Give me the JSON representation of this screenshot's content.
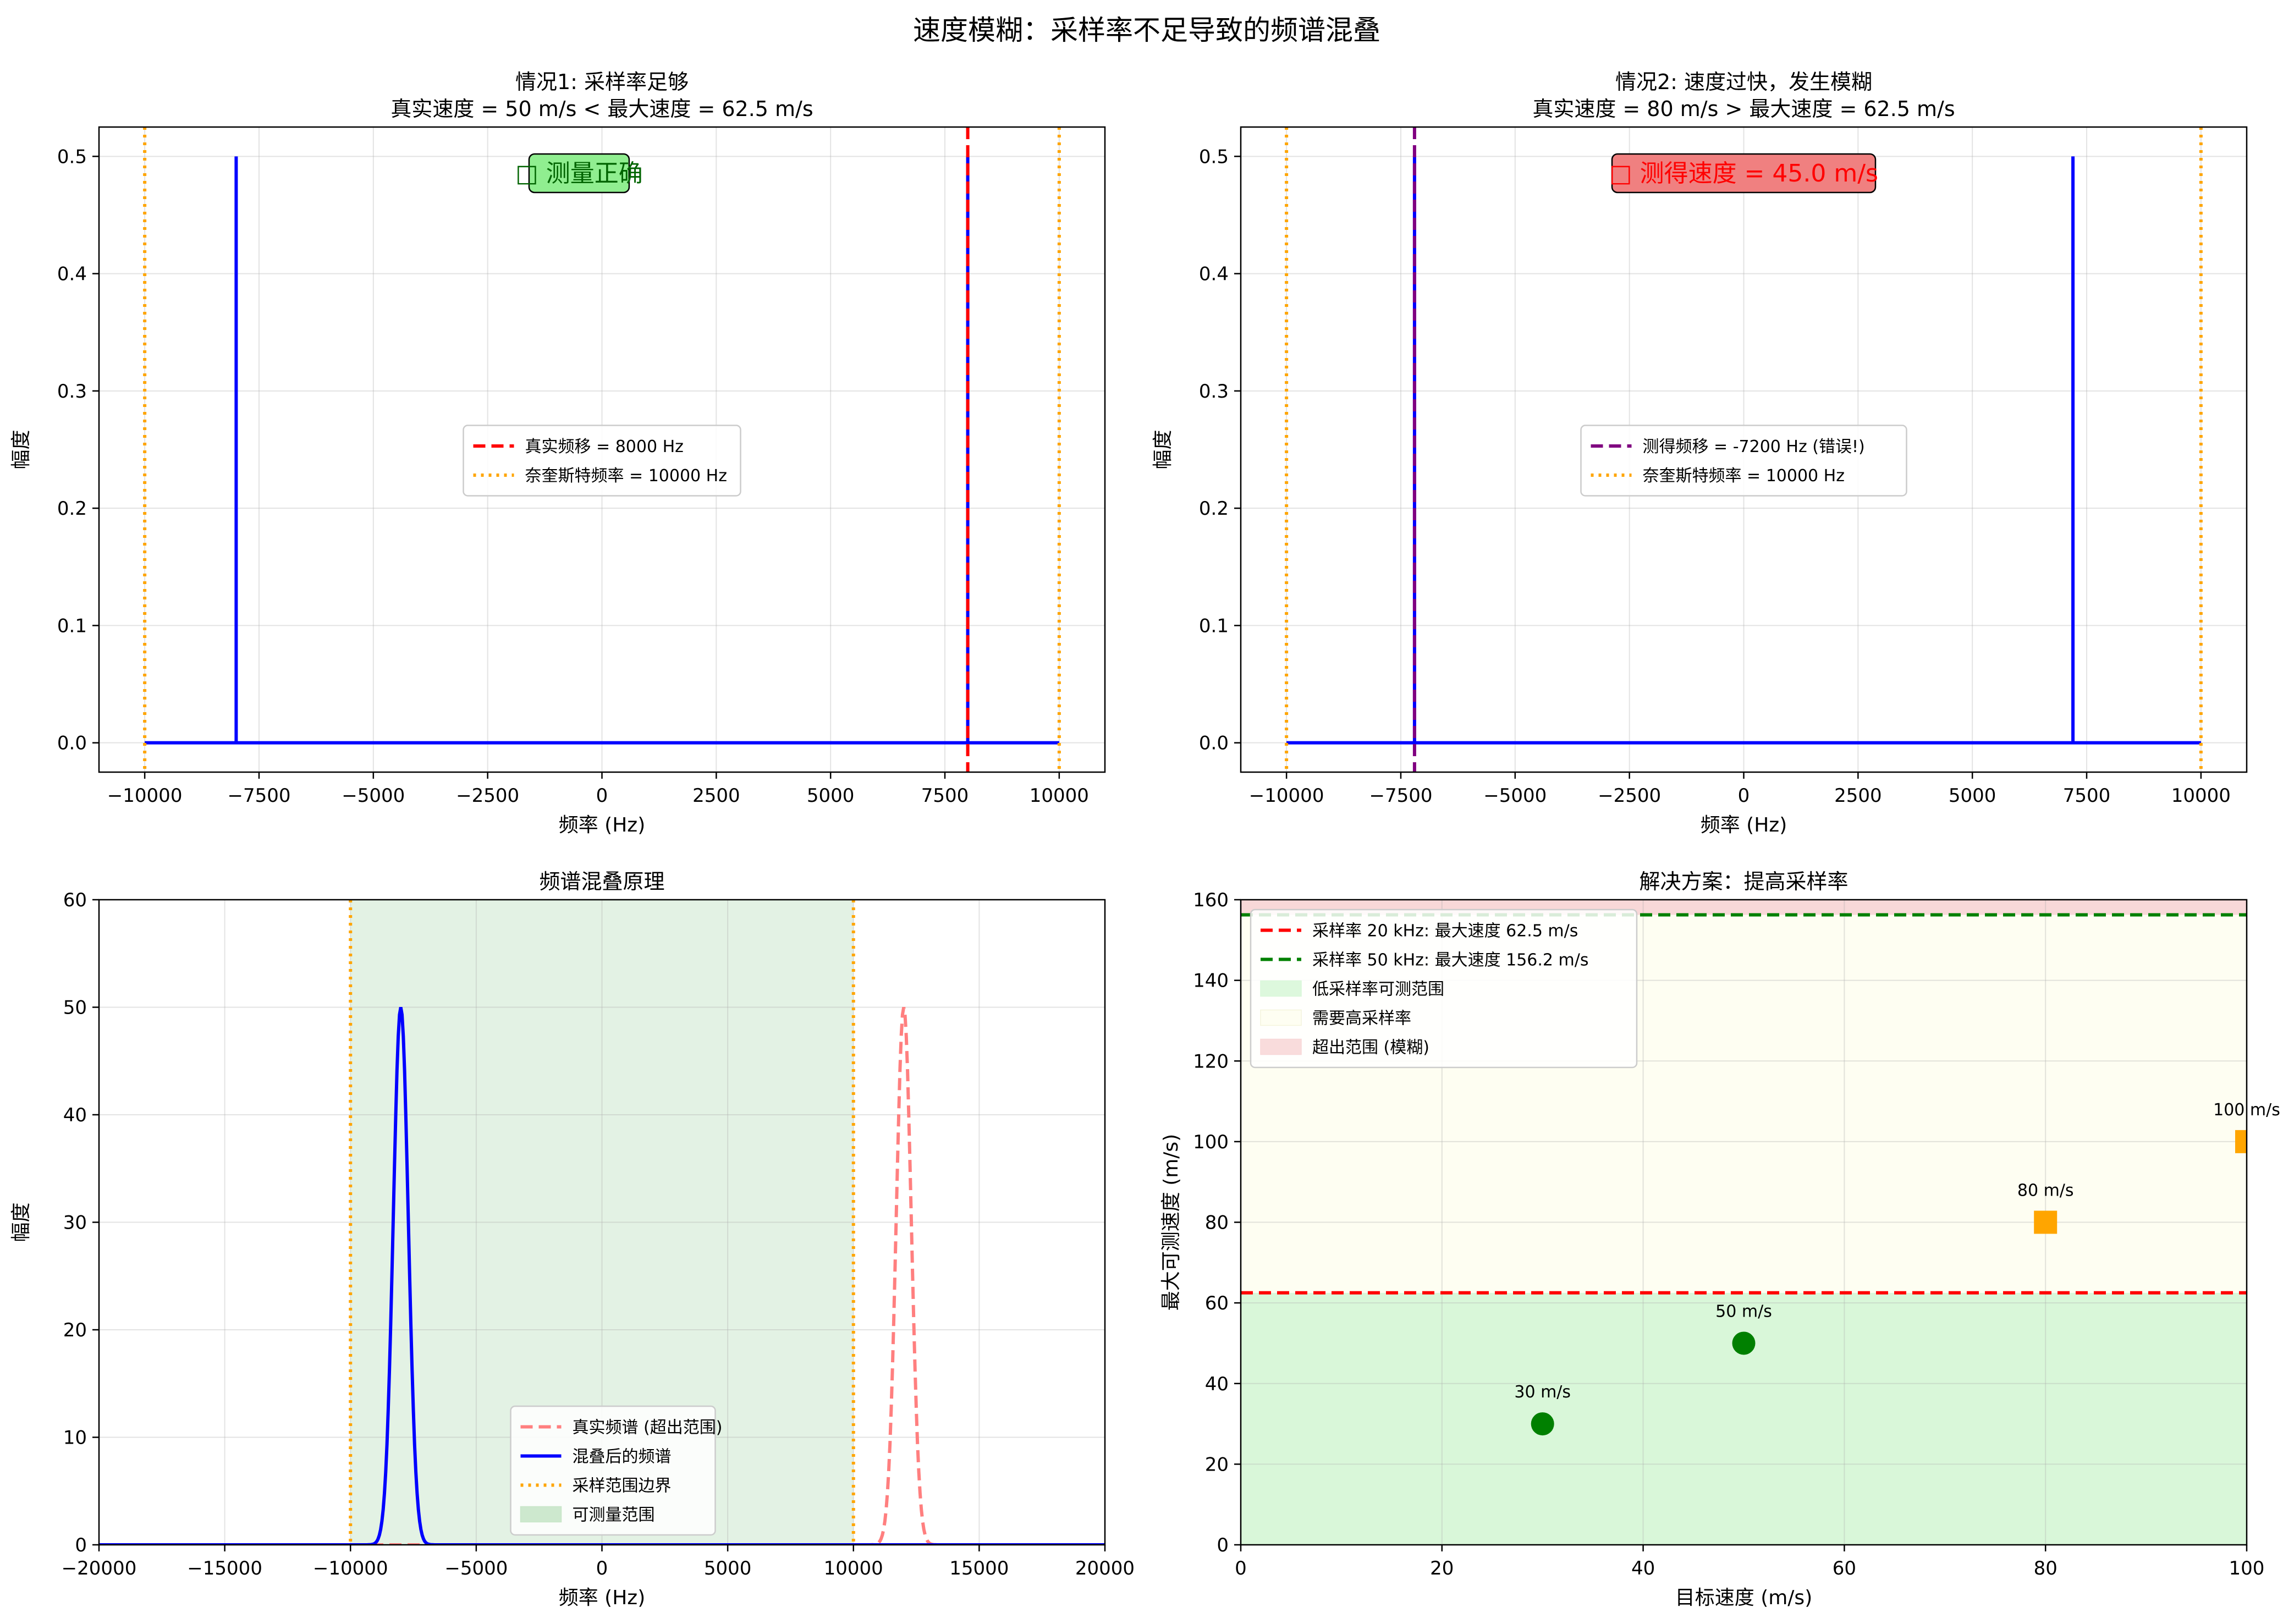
{
  "figure": {
    "suptitle": "速度模糊：采样率不足导致的频谱混叠"
  },
  "chart_data": [
    {
      "type": "line",
      "title_line1": "情况1: 采样率足够",
      "title_line2": "真实速度 = 50 m/s < 最大速度 = 62.5 m/s",
      "xlabel": "频率 (Hz)",
      "ylabel": "幅度",
      "xlim": [
        -11000,
        11000
      ],
      "ylim": [
        -0.025,
        0.525
      ],
      "xticks": [
        -10000,
        -7500,
        -5000,
        -2500,
        0,
        2500,
        5000,
        7500,
        10000
      ],
      "yticks": [
        0.0,
        0.1,
        0.2,
        0.3,
        0.4,
        0.5
      ],
      "grid": true,
      "spectrum": {
        "color": "#0000ff",
        "x_start": -10000,
        "x_end": 10000,
        "peaks": [
          {
            "x": -8000,
            "y": 0.5
          },
          {
            "x": 8000,
            "y": 0.5
          }
        ]
      },
      "vlines": [
        {
          "x": 8000,
          "style": "dashed",
          "color": "#ff0000"
        },
        {
          "x": -10000,
          "style": "dotted",
          "color": "#ffa500"
        },
        {
          "x": 10000,
          "style": "dotted",
          "color": "#ffa500"
        }
      ],
      "legend": {
        "placement": "center",
        "entries": [
          {
            "label": "真实频移 = 8000 Hz",
            "style": "dashed",
            "color": "#ff0000"
          },
          {
            "label": "奈奎斯特频率 = 10000 Hz",
            "style": "dotted",
            "color": "#ffa500"
          }
        ]
      },
      "annotation": {
        "text": "□ 测量正确",
        "bg": "#90ee90",
        "color": "#006400"
      }
    },
    {
      "type": "line",
      "title_line1": "情况2: 速度过快，发生模糊",
      "title_line2": "真实速度 = 80 m/s > 最大速度 = 62.5 m/s",
      "xlabel": "频率 (Hz)",
      "ylabel": "幅度",
      "xlim": [
        -11000,
        11000
      ],
      "ylim": [
        -0.025,
        0.525
      ],
      "xticks": [
        -10000,
        -7500,
        -5000,
        -2500,
        0,
        2500,
        5000,
        7500,
        10000
      ],
      "yticks": [
        0.0,
        0.1,
        0.2,
        0.3,
        0.4,
        0.5
      ],
      "grid": true,
      "spectrum": {
        "color": "#0000ff",
        "x_start": -10000,
        "x_end": 10000,
        "peaks": [
          {
            "x": -7200,
            "y": 0.5
          },
          {
            "x": 7200,
            "y": 0.5
          }
        ]
      },
      "vlines": [
        {
          "x": -7200,
          "style": "dashed",
          "color": "#800080"
        },
        {
          "x": -10000,
          "style": "dotted",
          "color": "#ffa500"
        },
        {
          "x": 10000,
          "style": "dotted",
          "color": "#ffa500"
        }
      ],
      "legend": {
        "placement": "center",
        "entries": [
          {
            "label": "测得频移 = -7200 Hz (错误!)",
            "style": "dashed",
            "color": "#800080"
          },
          {
            "label": "奈奎斯特频率 = 10000 Hz",
            "style": "dotted",
            "color": "#ffa500"
          }
        ]
      },
      "annotation": {
        "text": "□ 测得速度 = 45.0 m/s",
        "bg": "#f08080",
        "color": "#ff0000"
      }
    },
    {
      "type": "line",
      "title_line1": "频谱混叠原理",
      "xlabel": "频率 (Hz)",
      "ylabel": "幅度",
      "xlim": [
        -20000,
        20000
      ],
      "ylim": [
        0,
        60
      ],
      "xticks": [
        -20000,
        -15000,
        -10000,
        -5000,
        0,
        5000,
        10000,
        15000,
        20000
      ],
      "yticks": [
        0,
        10,
        20,
        30,
        40,
        50,
        60
      ],
      "grid": true,
      "shaded_band": {
        "x": [
          -10000,
          10000
        ],
        "color": "#c8e6c9"
      },
      "curves": [
        {
          "label": "真实频谱 (超出范围)",
          "center": 12000,
          "sigma": 300,
          "amplitude": 50,
          "style": "dashed",
          "color": "#ff7f7f"
        },
        {
          "label": "混叠后的频谱",
          "center": -8000,
          "sigma": 300,
          "amplitude": 50,
          "style": "solid",
          "color": "#0000ff"
        }
      ],
      "vlines": [
        {
          "x": -10000,
          "style": "dotted",
          "color": "#ffa500"
        },
        {
          "x": 10000,
          "style": "dotted",
          "color": "#ffa500"
        }
      ],
      "legend": {
        "placement": "lower center",
        "entries": [
          {
            "label": "真实频谱 (超出范围)",
            "style": "dashed",
            "color": "#ff7f7f"
          },
          {
            "label": "混叠后的频谱",
            "style": "solid",
            "color": "#0000ff"
          },
          {
            "label": "采样范围边界",
            "style": "dotted",
            "color": "#ffa500"
          },
          {
            "label": "可测量范围",
            "style": "patch",
            "color": "#c8e6c9"
          }
        ]
      }
    },
    {
      "type": "scatter",
      "title_line1": "解决方案：提高采样率",
      "xlabel": "目标速度 (m/s)",
      "ylabel": "最大可测速度 (m/s)",
      "xlim": [
        0,
        100
      ],
      "ylim": [
        0,
        160
      ],
      "xticks": [
        0,
        20,
        40,
        60,
        80,
        100
      ],
      "yticks": [
        0,
        20,
        40,
        60,
        80,
        100,
        120,
        140,
        160
      ],
      "grid": true,
      "bands": [
        {
          "y": [
            0,
            62.5
          ],
          "color": "#d9f7d9"
        },
        {
          "y": [
            62.5,
            156.25
          ],
          "color": "#fefef2"
        },
        {
          "y": [
            156.25,
            160
          ],
          "color": "#f8d8d8"
        }
      ],
      "hlines": [
        {
          "y": 62.5,
          "style": "dashed",
          "color": "#ff0000"
        },
        {
          "y": 156.25,
          "style": "dashed",
          "color": "#008000"
        }
      ],
      "points": [
        {
          "x": 30,
          "y": 30,
          "label": "30 m/s",
          "marker": "circle",
          "color": "#008000"
        },
        {
          "x": 50,
          "y": 50,
          "label": "50 m/s",
          "marker": "circle",
          "color": "#008000"
        },
        {
          "x": 80,
          "y": 80,
          "label": "80 m/s",
          "marker": "square",
          "color": "#ffa500"
        },
        {
          "x": 100,
          "y": 100,
          "label": "100 m/s",
          "marker": "square",
          "color": "#ffa500"
        }
      ],
      "legend": {
        "placement": "upper left",
        "entries": [
          {
            "label": "采样率 20 kHz: 最大速度 62.5 m/s",
            "style": "dashed",
            "color": "#ff0000"
          },
          {
            "label": "采样率 50 kHz: 最大速度 156.2 m/s",
            "style": "dashed",
            "color": "#008000"
          },
          {
            "label": "低采样率可测范围",
            "style": "patch",
            "color": "#d9f7d9"
          },
          {
            "label": "需要高采样率",
            "style": "patch",
            "color": "#fefef2"
          },
          {
            "label": "超出范围 (模糊)",
            "style": "patch",
            "color": "#f8d8d8"
          }
        ]
      }
    }
  ]
}
